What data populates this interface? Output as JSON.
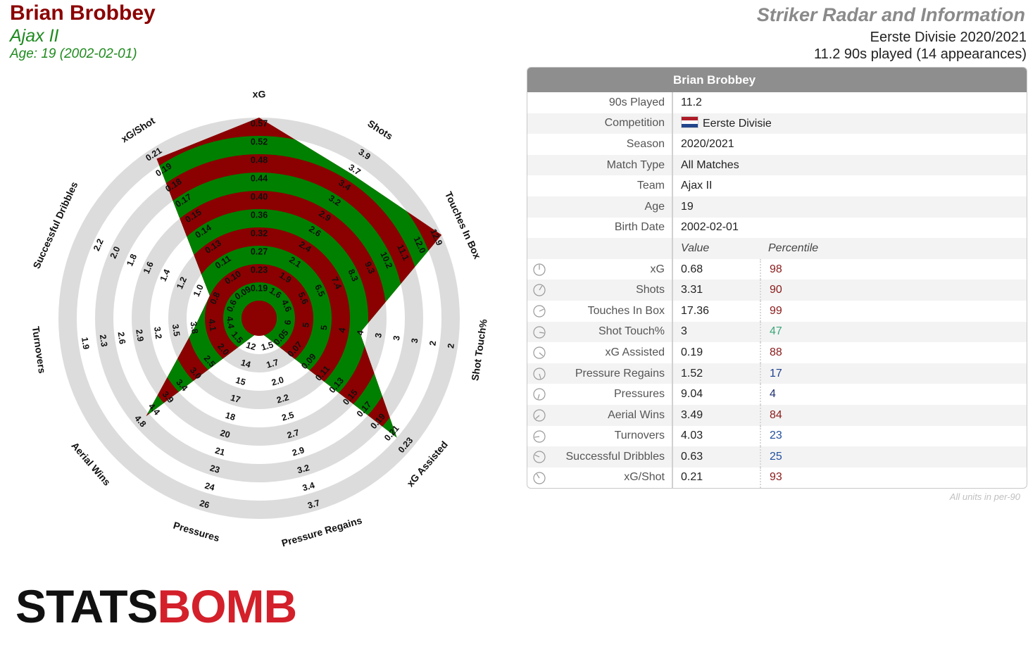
{
  "header": {
    "player_name": "Brian Brobbey",
    "team": "Ajax II",
    "age_line": "Age: 19 (2002-02-01)",
    "report_title": "Striker Radar and Information",
    "competition_line": "Eerste Divisie 2020/2021",
    "played_line": "11.2 90s played (14 appearances)"
  },
  "colors": {
    "name": "#8b0000",
    "team": "#1e8a1e",
    "ring_dark": "#8b0000",
    "ring_light": "#008000",
    "grey_band": "#dcdcdc"
  },
  "info_table": {
    "title": "Brian Brobbey",
    "rows": [
      {
        "label": "90s Played",
        "value": "11.2"
      },
      {
        "label": "Competition",
        "value": "Eerste Divisie"
      },
      {
        "label": "Season",
        "value": "2020/2021"
      },
      {
        "label": "Match Type",
        "value": "All Matches"
      },
      {
        "label": "Team",
        "value": "Ajax II"
      },
      {
        "label": "Age",
        "value": "19"
      },
      {
        "label": "Birth Date",
        "value": "2002-02-01"
      }
    ],
    "value_header": "Value",
    "percentile_header": "Percentile",
    "metrics": [
      {
        "label": "xG",
        "value": "0.68",
        "percentile": "98",
        "color": "#8b1a1a"
      },
      {
        "label": "Shots",
        "value": "3.31",
        "percentile": "90",
        "color": "#8b1a1a"
      },
      {
        "label": "Touches In Box",
        "value": "17.36",
        "percentile": "99",
        "color": "#8b1a1a"
      },
      {
        "label": "Shot Touch%",
        "value": "3",
        "percentile": "47",
        "color": "#3aa57a"
      },
      {
        "label": "xG Assisted",
        "value": "0.19",
        "percentile": "88",
        "color": "#8b1a1a"
      },
      {
        "label": "Pressure Regains",
        "value": "1.52",
        "percentile": "17",
        "color": "#1f3f8f"
      },
      {
        "label": "Pressures",
        "value": "9.04",
        "percentile": "4",
        "color": "#1f2f6f"
      },
      {
        "label": "Aerial Wins",
        "value": "3.49",
        "percentile": "84",
        "color": "#8b1a1a"
      },
      {
        "label": "Turnovers",
        "value": "4.03",
        "percentile": "23",
        "color": "#1f4f9f"
      },
      {
        "label": "Successful Dribbles",
        "value": "0.63",
        "percentile": "25",
        "color": "#1f4f9f"
      },
      {
        "label": "xG/Shot",
        "value": "0.21",
        "percentile": "93",
        "color": "#8b1a1a"
      }
    ],
    "units_note": "All units in per-90"
  },
  "logo": {
    "left": "STATS",
    "right": "BOMB"
  },
  "chart_data": {
    "type": "radar",
    "categories": [
      "xG",
      "Shots",
      "Touches In Box",
      "Shot Touch%",
      "xG Assisted",
      "Pressure Regains",
      "Pressures",
      "Aerial Wins",
      "Turnovers",
      "Successful Dribbles",
      "xG/Shot"
    ],
    "series": [
      {
        "values": [
          0.68,
          3.31,
          17.36,
          3,
          0.19,
          1.52,
          9.04,
          3.49,
          4.03,
          0.63,
          0.21
        ]
      }
    ],
    "display_fraction": [
      1.0,
      0.84,
      1.0,
      0.46,
      0.9,
      0.0,
      0.0,
      0.72,
      0.26,
      0.2,
      0.94
    ],
    "tick_labels": [
      [
        "0.19",
        "0.23",
        "0.27",
        "0.32",
        "0.36",
        "0.40",
        "0.44",
        "0.48",
        "0.52",
        "0.57"
      ],
      [
        "1.6",
        "1.9",
        "2.1",
        "2.4",
        "2.6",
        "2.9",
        "3.2",
        "3.4",
        "3.7",
        "3.9"
      ],
      [
        "4.6",
        "5.6",
        "6.5",
        "7.4",
        "8.3",
        "9.3",
        "10.2",
        "11.1",
        "12.0",
        "12.9"
      ],
      [
        "6",
        "5",
        "5",
        "4",
        "4",
        "3",
        "3",
        "3",
        "2",
        "2"
      ],
      [
        "0.05",
        "0.07",
        "0.09",
        "0.11",
        "0.13",
        "0.15",
        "0.17",
        "0.19",
        "0.21",
        "0.23"
      ],
      [
        "1.5",
        "1.7",
        "2.0",
        "2.2",
        "2.5",
        "2.7",
        "2.9",
        "3.2",
        "3.4",
        "3.7"
      ],
      [
        "12",
        "14",
        "15",
        "17",
        "18",
        "20",
        "21",
        "23",
        "24",
        "26"
      ],
      [
        "1.5",
        "2.0",
        "2.5",
        "3.0",
        "3.4",
        "3.9",
        "4.4",
        "4.8",
        "",
        ""
      ],
      [
        "4.4",
        "4.1",
        "3.8",
        "3.5",
        "3.2",
        "2.9",
        "2.6",
        "2.3",
        "1.9",
        ""
      ],
      [
        "0.6",
        "0.8",
        "1.0",
        "1.2",
        "1.4",
        "1.6",
        "1.8",
        "2.0",
        "2.2",
        ""
      ],
      [
        "0.09",
        "0.10",
        "0.11",
        "0.13",
        "0.14",
        "0.15",
        "0.17",
        "0.18",
        "0.19",
        "0.21"
      ]
    ]
  }
}
